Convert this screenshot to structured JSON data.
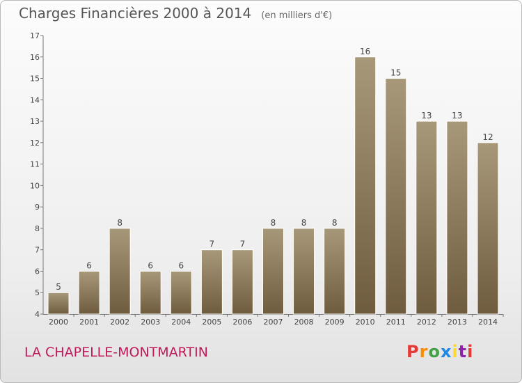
{
  "header": {
    "title": "Charges Financières 2000 à 2014",
    "unit": "(en milliers d'€)"
  },
  "footer": {
    "place": "LA CHAPELLE-MONTMARTIN",
    "brand": "Proxiti"
  },
  "colors": {
    "bar_top": "#a8987a",
    "bar_bottom": "#6f5c3f",
    "place_text": "#c2185b",
    "logo_letters": [
      "#e53935",
      "#fb8c00",
      "#43a047",
      "#1e88e5",
      "#fdd835",
      "#8e24aa",
      "#e53935"
    ]
  },
  "chart_data": {
    "type": "bar",
    "title": "Charges Financières 2000 à 2014",
    "categories": [
      "2000",
      "2001",
      "2002",
      "2003",
      "2004",
      "2005",
      "2006",
      "2007",
      "2008",
      "2009",
      "2010",
      "2011",
      "2012",
      "2013",
      "2014"
    ],
    "values": [
      5,
      6,
      8,
      6,
      6,
      7,
      7,
      8,
      8,
      8,
      16,
      15,
      13,
      13,
      12
    ],
    "ylim": [
      4,
      17
    ],
    "yticks": [
      4,
      5,
      6,
      7,
      8,
      9,
      10,
      11,
      12,
      13,
      14,
      15,
      16,
      17
    ],
    "xlabel": "",
    "ylabel": "",
    "grid": false,
    "data_labels": true
  }
}
